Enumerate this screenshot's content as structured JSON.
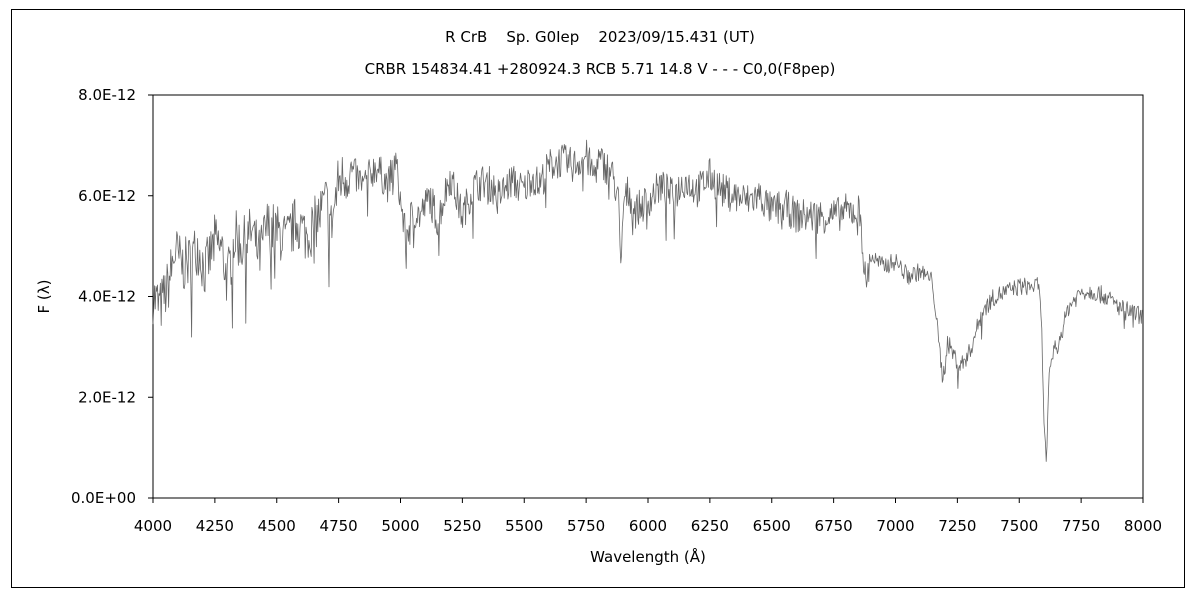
{
  "chart_data": {
    "type": "line",
    "title": "R CrB    Sp. G0Iep    2023/09/15.431 (UT)",
    "subtitle": "CRBR 154834.41 +280924.3 RCB 5.71 14.8 V - - - C0,0(F8pep)",
    "xlabel": "Wavelength (Å)",
    "ylabel": "F (λ)",
    "xlim": [
      4000,
      8000
    ],
    "ylim": [
      0,
      8e-12
    ],
    "xticks": [
      "4000",
      "4250",
      "4500",
      "4750",
      "5000",
      "5250",
      "5500",
      "5750",
      "6000",
      "6250",
      "6500",
      "6750",
      "7000",
      "7250",
      "7500",
      "7750",
      "8000"
    ],
    "yticks": [
      "0.0E+00",
      "2.0E-12",
      "4.0E-12",
      "6.0E-12",
      "8.0E-12"
    ],
    "grid": false,
    "series": [
      {
        "color": "#666666",
        "x": [
          4000,
          4030,
          4060,
          4090,
          4120,
          4150,
          4180,
          4210,
          4250,
          4280,
          4300,
          4330,
          4360,
          4400,
          4430,
          4460,
          4500,
          4540,
          4580,
          4620,
          4660,
          4700,
          4720,
          4750,
          4780,
          4800,
          4850,
          4900,
          4950,
          4980,
          5000,
          5020,
          5050,
          5080,
          5120,
          5150,
          5200,
          5250,
          5280,
          5300,
          5350,
          5400,
          5450,
          5500,
          5530,
          5560,
          5600,
          5650,
          5700,
          5750,
          5780,
          5800,
          5850,
          5880,
          5890,
          5900,
          5920,
          5950,
          6000,
          6050,
          6100,
          6150,
          6200,
          6250,
          6300,
          6350,
          6400,
          6450,
          6500,
          6550,
          6600,
          6650,
          6700,
          6750,
          6800,
          6850,
          6860,
          6870,
          6880,
          6900,
          6950,
          7000,
          7050,
          7100,
          7150,
          7170,
          7190,
          7200,
          7210,
          7230,
          7260,
          7300,
          7350,
          7400,
          7450,
          7500,
          7550,
          7580,
          7590,
          7600,
          7610,
          7620,
          7640,
          7660,
          7700,
          7750,
          7800,
          7850,
          7900,
          7950,
          8000
        ],
        "y": [
          4e-12,
          3.8e-12,
          4.2e-12,
          4.9e-12,
          4.6e-12,
          4.7e-12,
          5e-12,
          4.5e-12,
          5.1e-12,
          4.9e-12,
          4.3e-12,
          5.2e-12,
          5e-12,
          5.3e-12,
          4.8e-12,
          5.4e-12,
          5.3e-12,
          5.1e-12,
          5.5e-12,
          5.2e-12,
          5.5e-12,
          5.9e-12,
          5.4e-12,
          6.3e-12,
          6.4e-12,
          6.5e-12,
          6.2e-12,
          6.6e-12,
          6.2e-12,
          6.7e-12,
          5.9e-12,
          5.2e-12,
          5.7e-12,
          5.6e-12,
          6e-12,
          5.5e-12,
          6.4e-12,
          5.6e-12,
          6e-12,
          6.2e-12,
          6.3e-12,
          6e-12,
          6.3e-12,
          6.1e-12,
          6.4e-12,
          6.2e-12,
          6.6e-12,
          6.7e-12,
          6.6e-12,
          6.8e-12,
          6.4e-12,
          6.7e-12,
          6.5e-12,
          6e-12,
          4.4e-12,
          5.8e-12,
          6.1e-12,
          5.7e-12,
          5.9e-12,
          6.2e-12,
          6e-12,
          6.3e-12,
          6.1e-12,
          6.4e-12,
          6.1e-12,
          6e-12,
          5.9e-12,
          6e-12,
          5.7e-12,
          5.8e-12,
          5.6e-12,
          5.6e-12,
          5.6e-12,
          5.6e-12,
          5.7e-12,
          5.7e-12,
          5.6e-12,
          4.8e-12,
          4.2e-12,
          4.8e-12,
          4.6e-12,
          4.7e-12,
          4.4e-12,
          4.5e-12,
          4.3e-12,
          3.3e-12,
          2.4e-12,
          2.6e-12,
          3.1e-12,
          2.9e-12,
          2.6e-12,
          2.9e-12,
          3.7e-12,
          4e-12,
          4.1e-12,
          4.2e-12,
          4.2e-12,
          4.2e-12,
          3.5e-12,
          1.5e-12,
          7e-13,
          2.4e-12,
          3e-12,
          3.1e-12,
          3.8e-12,
          4.1e-12,
          4.1e-12,
          4e-12,
          3.8e-12,
          3.7e-12,
          3.6e-12
        ]
      }
    ]
  }
}
